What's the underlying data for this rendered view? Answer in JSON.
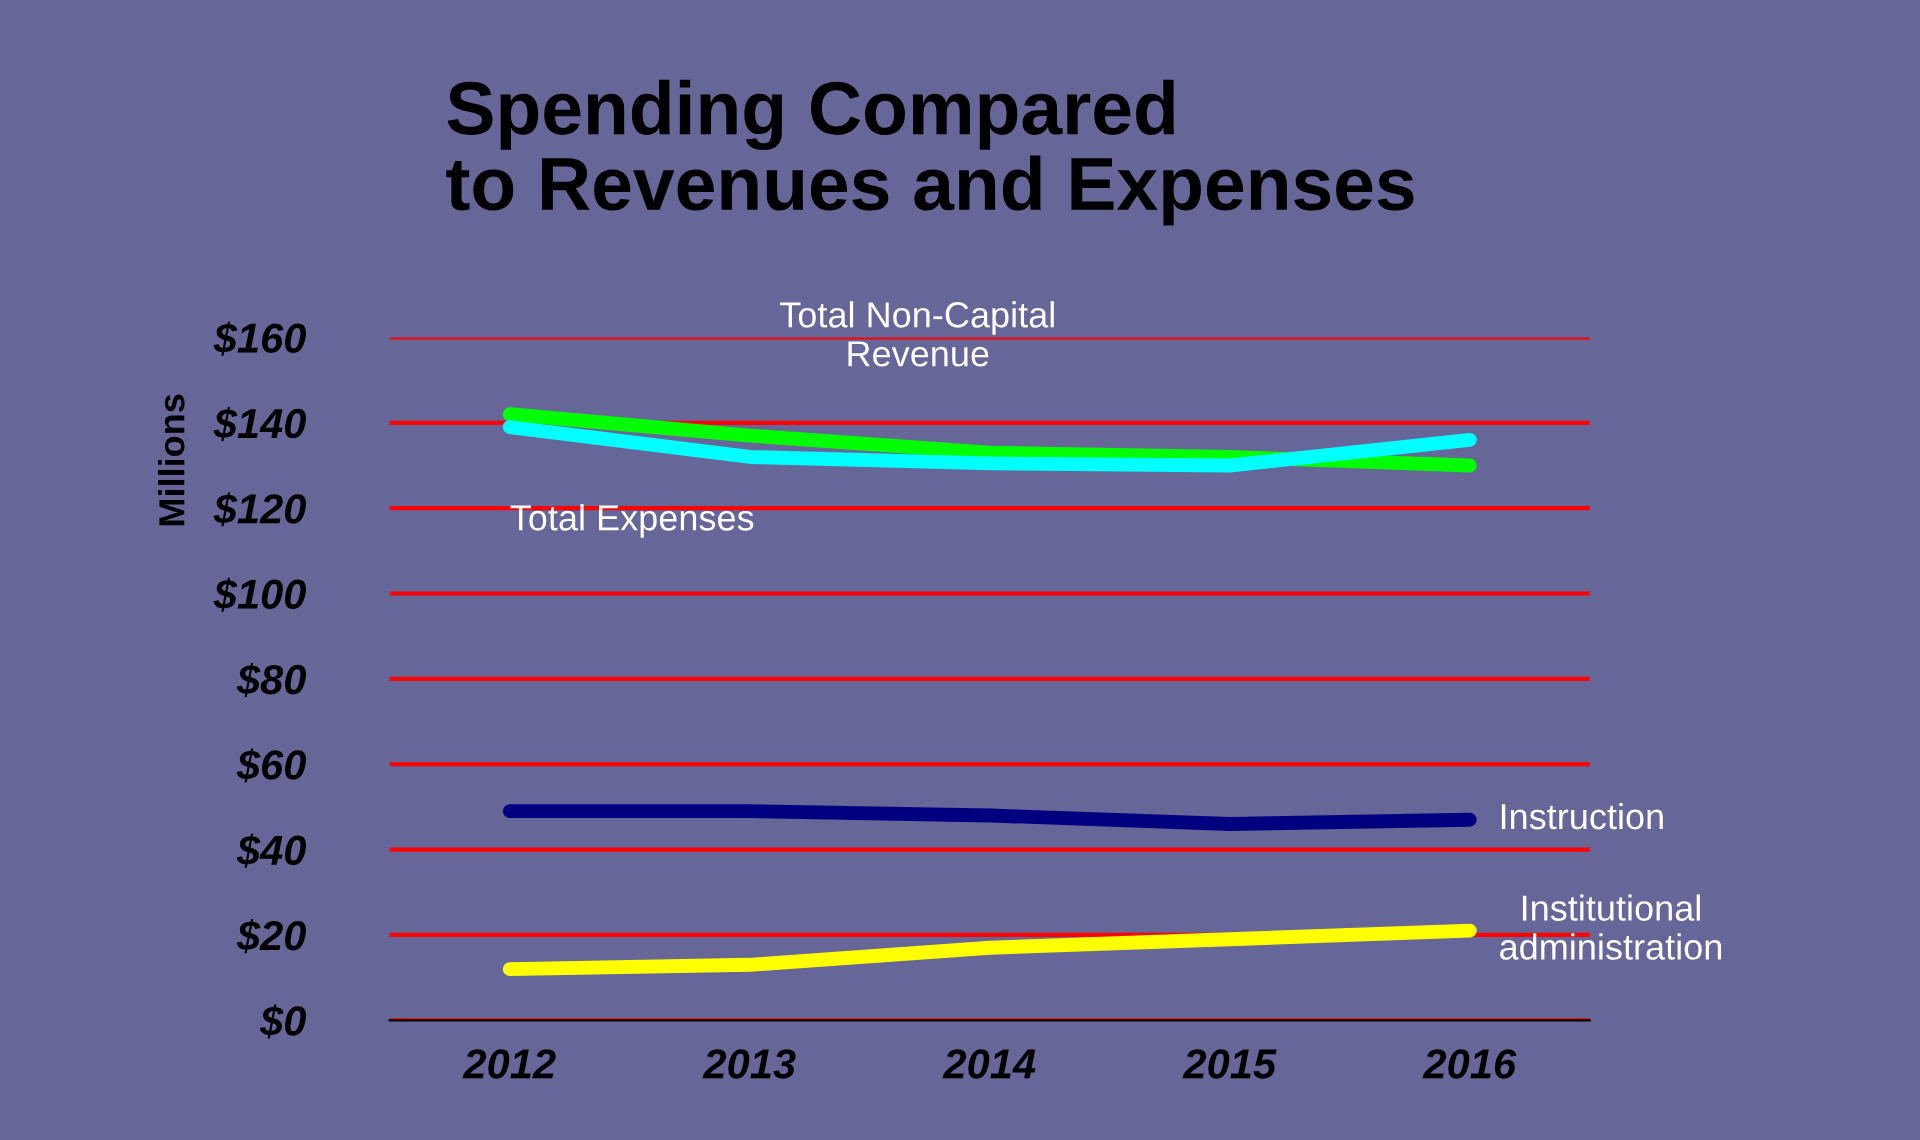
{
  "chart_data": {
    "type": "line",
    "title": "Spending Compared\nto Revenues and Expenses",
    "ylabel": "Millions",
    "categories": [
      "2012",
      "2013",
      "2014",
      "2015",
      "2016"
    ],
    "series": [
      {
        "name": "Total Non-Capital\nRevenue",
        "color": "#00ff00",
        "values": [
          142,
          137,
          133,
          132,
          130
        ]
      },
      {
        "name": "Total Expenses",
        "color": "#00ffff",
        "values": [
          139,
          132,
          130.5,
          130,
          136
        ]
      },
      {
        "name": "Instruction",
        "color": "#000080",
        "values": [
          49,
          49,
          48,
          46,
          47
        ]
      },
      {
        "name": "Institutional\nadministration",
        "color": "#ffff00",
        "values": [
          12,
          13,
          17,
          19,
          21
        ]
      }
    ],
    "ylim": [
      0,
      160
    ],
    "yticks": [
      {
        "value": 0,
        "label": "$0"
      },
      {
        "value": 20,
        "label": "$20"
      },
      {
        "value": 40,
        "label": "$40"
      },
      {
        "value": 60,
        "label": "$60"
      },
      {
        "value": 80,
        "label": "$80"
      },
      {
        "value": 100,
        "label": "$100"
      },
      {
        "value": 120,
        "label": "$120"
      },
      {
        "value": 140,
        "label": "$140"
      },
      {
        "value": 160,
        "label": "$160"
      }
    ],
    "grid": "y",
    "legend": false,
    "marker": "none",
    "line_style": "solid"
  }
}
